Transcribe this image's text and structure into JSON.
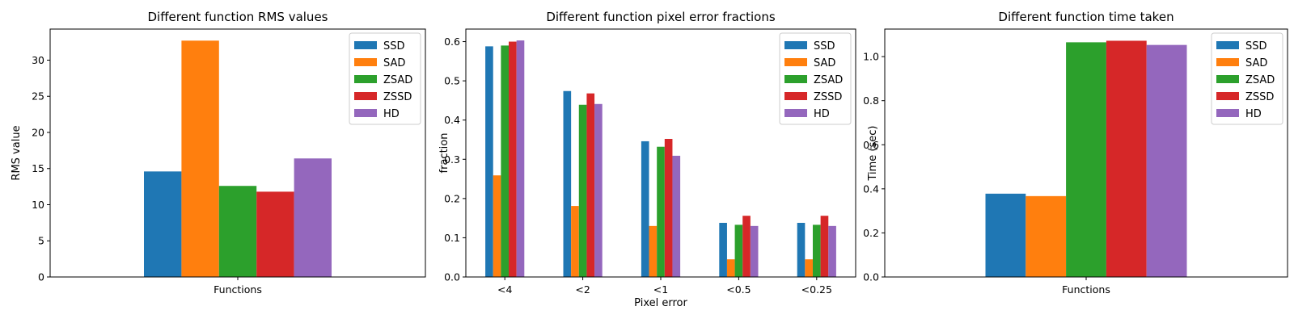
{
  "chart_data": [
    {
      "type": "bar",
      "title": "Different function RMS values",
      "xlabel": "Functions",
      "ylabel": "RMS value",
      "categories": [
        ""
      ],
      "series": [
        {
          "name": "SSD",
          "values": [
            14.6
          ]
        },
        {
          "name": "SAD",
          "values": [
            32.7
          ]
        },
        {
          "name": "ZSAD",
          "values": [
            12.6
          ]
        },
        {
          "name": "ZSSD",
          "values": [
            11.8
          ]
        },
        {
          "name": "HD",
          "values": [
            16.4
          ]
        }
      ],
      "ylim": [
        0,
        34.3
      ],
      "yticks": [
        0,
        5,
        10,
        15,
        20,
        25,
        30
      ],
      "ytick_labels": [
        "0",
        "5",
        "10",
        "15",
        "20",
        "25",
        "30"
      ],
      "legend": "top-right",
      "grid": false
    },
    {
      "type": "bar",
      "title": "Different function pixel error fractions",
      "xlabel": "Pixel error",
      "ylabel": "fraction",
      "categories": [
        "<4",
        "<2",
        "<1",
        "<0.5",
        "<0.25"
      ],
      "series": [
        {
          "name": "SSD",
          "values": [
            0.588,
            0.474,
            0.346,
            0.138,
            0.138
          ]
        },
        {
          "name": "SAD",
          "values": [
            0.259,
            0.181,
            0.13,
            0.045,
            0.045
          ]
        },
        {
          "name": "ZSAD",
          "values": [
            0.59,
            0.439,
            0.332,
            0.133,
            0.133
          ]
        },
        {
          "name": "ZSSD",
          "values": [
            0.6,
            0.468,
            0.352,
            0.156,
            0.156
          ]
        },
        {
          "name": "HD",
          "values": [
            0.603,
            0.441,
            0.309,
            0.13,
            0.13
          ]
        }
      ],
      "ylim": [
        0,
        0.632
      ],
      "yticks": [
        0,
        0.1,
        0.2,
        0.3,
        0.4,
        0.5,
        0.6
      ],
      "ytick_labels": [
        "0.0",
        "0.1",
        "0.2",
        "0.3",
        "0.4",
        "0.5",
        "0.6"
      ],
      "legend": "top-right",
      "grid": false
    },
    {
      "type": "bar",
      "title": "Different function time taken",
      "xlabel": "Functions",
      "ylabel": "Time (sec)",
      "categories": [
        ""
      ],
      "series": [
        {
          "name": "SSD",
          "values": [
            0.378
          ]
        },
        {
          "name": "SAD",
          "values": [
            0.367
          ]
        },
        {
          "name": "ZSAD",
          "values": [
            1.065
          ]
        },
        {
          "name": "ZSSD",
          "values": [
            1.072
          ]
        },
        {
          "name": "HD",
          "values": [
            1.053
          ]
        }
      ],
      "ylim": [
        0,
        1.125
      ],
      "yticks": [
        0,
        0.2,
        0.4,
        0.6,
        0.8,
        1.0
      ],
      "ytick_labels": [
        "0.0",
        "0.2",
        "0.4",
        "0.6",
        "0.8",
        "1.0"
      ],
      "legend": "top-right",
      "grid": false
    }
  ],
  "colors": {
    "SSD": "#1f77b4",
    "SAD": "#ff7f0e",
    "ZSAD": "#2ca02c",
    "ZSSD": "#d62728",
    "HD": "#9467bd"
  },
  "category_labels": {
    "left": "Functions",
    "right": "Functions"
  }
}
